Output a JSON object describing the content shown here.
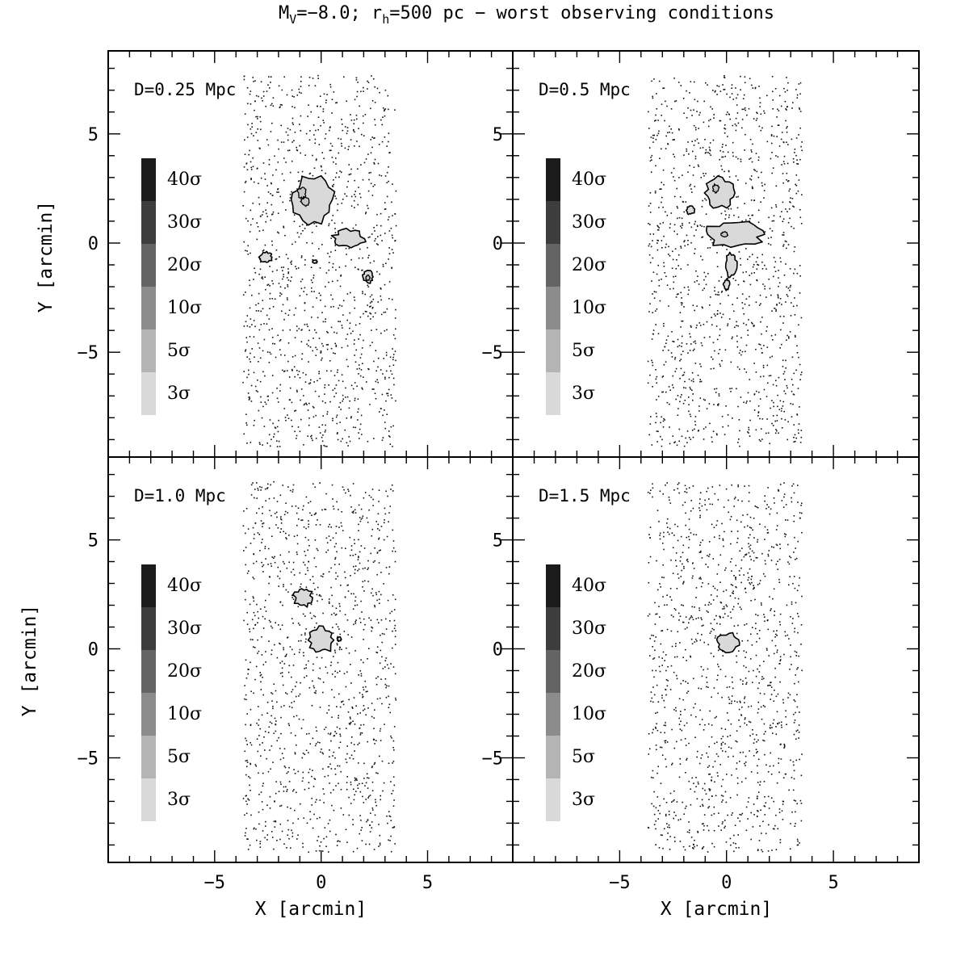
{
  "title": {
    "prefix": "M",
    "prefix_sub": "V",
    "middle": "=−8.0; r",
    "middle_sub": "h",
    "suffix": "=500 pc − worst observing conditions"
  },
  "chart_data": {
    "type": "scatter",
    "description_kind": "density-contour map over star field",
    "xlabel": "X [arcmin]",
    "ylabel": "Y [arcmin]",
    "xlim": [
      -10,
      9
    ],
    "ylim": [
      -9.8,
      8.8
    ],
    "xticks": [
      -5,
      0,
      5
    ],
    "yticks": [
      -5,
      0,
      5
    ],
    "xtick_labels": [
      "−5",
      "0",
      "5"
    ],
    "ytick_labels": [
      "−5",
      "0",
      "5"
    ],
    "field": {
      "x_range": [
        -3.7,
        3.5
      ],
      "y_range": [
        -9.3,
        7.7
      ],
      "star_count": 1200
    },
    "scale_levels": [
      {
        "label": "40σ",
        "color": "#1b1b1b"
      },
      {
        "label": "30σ",
        "color": "#3d3d3d"
      },
      {
        "label": "20σ",
        "color": "#646464"
      },
      {
        "label": "10σ",
        "color": "#8c8c8c"
      },
      {
        "label": "5σ",
        "color": "#b4b4b4"
      },
      {
        "label": "3σ",
        "color": "#d9d9d9"
      }
    ],
    "panels": [
      {
        "label": "D=0.25 Mpc",
        "blobs": [
          {
            "x": -0.45,
            "y": 2.0,
            "rx": 1.0,
            "ry": 1.1,
            "inner": [
              {
                "x": -0.9,
                "y": 2.3,
                "rx": 0.2,
                "ry": 0.25
              },
              {
                "x": -0.75,
                "y": 1.9,
                "rx": 0.2,
                "ry": 0.2
              }
            ]
          },
          {
            "x": 1.3,
            "y": 0.2,
            "rx": 0.75,
            "ry": 0.45,
            "inner": []
          },
          {
            "x": -2.6,
            "y": -0.65,
            "rx": 0.3,
            "ry": 0.25,
            "inner": []
          },
          {
            "x": 2.2,
            "y": -1.55,
            "rx": 0.25,
            "ry": 0.3,
            "inner": [
              {
                "x": 2.2,
                "y": -1.6,
                "rx": 0.1,
                "ry": 0.12
              }
            ]
          },
          {
            "x": -0.3,
            "y": -0.85,
            "rx": 0.12,
            "ry": 0.08,
            "inner": []
          }
        ]
      },
      {
        "label": "D=0.5 Mpc",
        "blobs": [
          {
            "x": -0.3,
            "y": 2.3,
            "rx": 0.7,
            "ry": 0.7,
            "inner": [
              {
                "x": -0.5,
                "y": 2.5,
                "rx": 0.15,
                "ry": 0.2
              }
            ]
          },
          {
            "x": 0.4,
            "y": 0.4,
            "rx": 1.4,
            "ry": 0.6,
            "inner": [
              {
                "x": -0.1,
                "y": 0.4,
                "rx": 0.15,
                "ry": 0.12
              }
            ]
          },
          {
            "x": 0.2,
            "y": -1.0,
            "rx": 0.3,
            "ry": 0.55,
            "inner": []
          },
          {
            "x": 0.0,
            "y": -1.9,
            "rx": 0.15,
            "ry": 0.25,
            "inner": []
          },
          {
            "x": -1.7,
            "y": 1.5,
            "rx": 0.2,
            "ry": 0.2,
            "inner": []
          }
        ]
      },
      {
        "label": "D=1.0 Mpc",
        "blobs": [
          {
            "x": -0.85,
            "y": 2.35,
            "rx": 0.45,
            "ry": 0.45,
            "inner": []
          },
          {
            "x": 0.0,
            "y": 0.4,
            "rx": 0.6,
            "ry": 0.6,
            "inner": []
          },
          {
            "x": 0.85,
            "y": 0.45,
            "rx": 0.1,
            "ry": 0.1,
            "inner": []
          }
        ]
      },
      {
        "label": "D=1.5 Mpc",
        "blobs": [
          {
            "x": 0.05,
            "y": 0.3,
            "rx": 0.55,
            "ry": 0.45,
            "inner": []
          }
        ]
      }
    ]
  }
}
